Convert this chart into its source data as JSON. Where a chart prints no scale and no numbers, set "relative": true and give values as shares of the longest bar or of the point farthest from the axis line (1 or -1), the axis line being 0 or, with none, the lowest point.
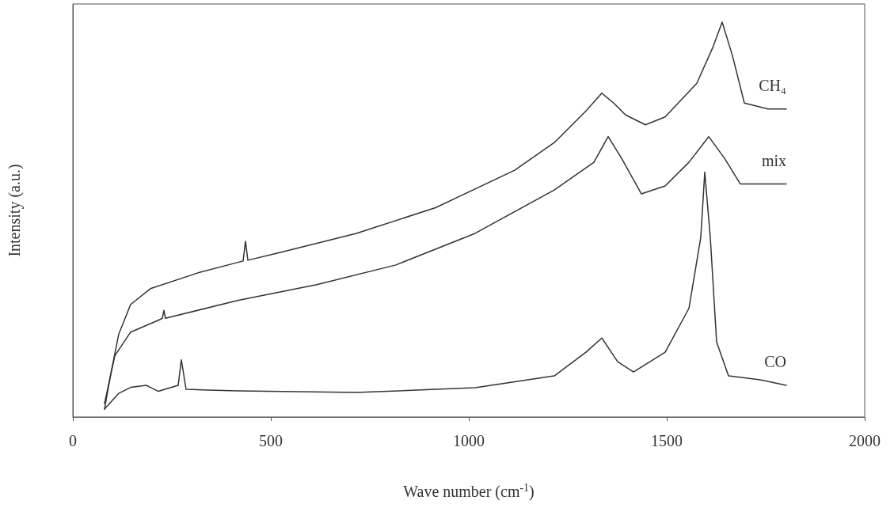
{
  "chart_data": {
    "type": "line",
    "relative": true,
    "xlabel": "Wave number (cm$^{-1}$)",
    "ylabel": "Intensity (a.u.)",
    "xlim": [
      0,
      2000
    ],
    "xticks": [
      0,
      500,
      1000,
      1500,
      2000
    ],
    "grid": false,
    "legend": false,
    "marker": "none",
    "line_style": "solid",
    "series": [
      {
        "name": "CH₄",
        "color": "#333333",
        "x": [
          80,
          96,
          116,
          146,
          196,
          316,
          430,
          436,
          442,
          516,
          716,
          916,
          1116,
          1216,
          1296,
          1336,
          1366,
          1396,
          1446,
          1496,
          1576,
          1616,
          1640,
          1666,
          1696,
          1756,
          1802
        ],
        "values": [
          0.02,
          0.11,
          0.21,
          0.285,
          0.325,
          0.365,
          0.395,
          0.445,
          0.397,
          0.415,
          0.465,
          0.53,
          0.625,
          0.695,
          0.775,
          0.82,
          0.795,
          0.765,
          0.74,
          0.76,
          0.845,
          0.935,
          1.0,
          0.915,
          0.795,
          0.78,
          0.78
        ]
      },
      {
        "name": "mix",
        "color": "#333333",
        "x": [
          80,
          106,
          146,
          216,
          226,
          230,
          234,
          416,
          616,
          816,
          1016,
          1216,
          1316,
          1352,
          1386,
          1436,
          1496,
          1556,
          1606,
          1646,
          1686,
          1802
        ],
        "values": [
          0.034,
          0.155,
          0.215,
          0.245,
          0.25,
          0.27,
          0.25,
          0.295,
          0.335,
          0.385,
          0.465,
          0.575,
          0.645,
          0.71,
          0.655,
          0.565,
          0.585,
          0.645,
          0.71,
          0.655,
          0.59,
          0.59
        ]
      },
      {
        "name": "CO",
        "color": "#333333",
        "x": [
          80,
          116,
          146,
          186,
          216,
          266,
          274,
          286,
          416,
          716,
          1016,
          1216,
          1296,
          1336,
          1376,
          1416,
          1496,
          1556,
          1586,
          1596,
          1610,
          1626,
          1656,
          1736,
          1802
        ],
        "values": [
          0.02,
          0.06,
          0.075,
          0.08,
          0.065,
          0.08,
          0.145,
          0.07,
          0.066,
          0.062,
          0.074,
          0.104,
          0.164,
          0.2,
          0.14,
          0.114,
          0.164,
          0.275,
          0.455,
          0.62,
          0.455,
          0.19,
          0.104,
          0.094,
          0.08
        ]
      }
    ]
  }
}
